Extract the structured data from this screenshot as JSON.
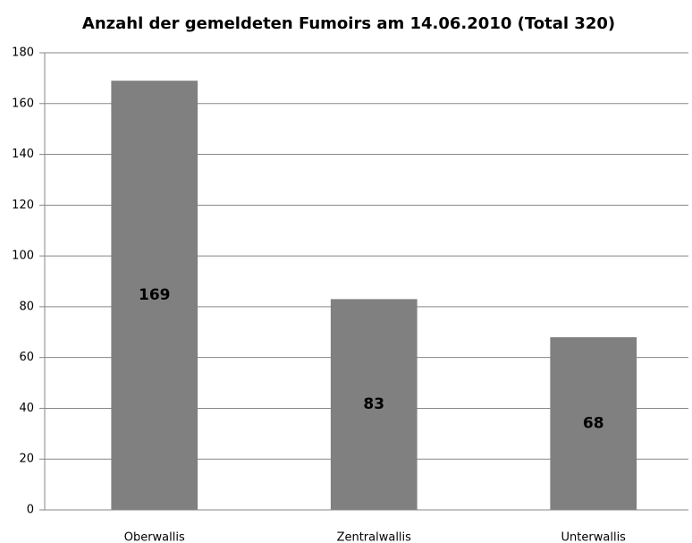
{
  "chart_data": {
    "type": "bar",
    "title": "Anzahl der gemeldeten Fumoirs am 14.06.2010 (Total 320)",
    "categories": [
      "Oberwallis",
      "Zentralwallis",
      "Unterwallis"
    ],
    "values": [
      169,
      83,
      68
    ],
    "color": "#808080",
    "ylim": [
      0,
      180
    ],
    "yticks": [
      0,
      20,
      40,
      60,
      80,
      100,
      120,
      140,
      160,
      180
    ],
    "grid": true
  }
}
